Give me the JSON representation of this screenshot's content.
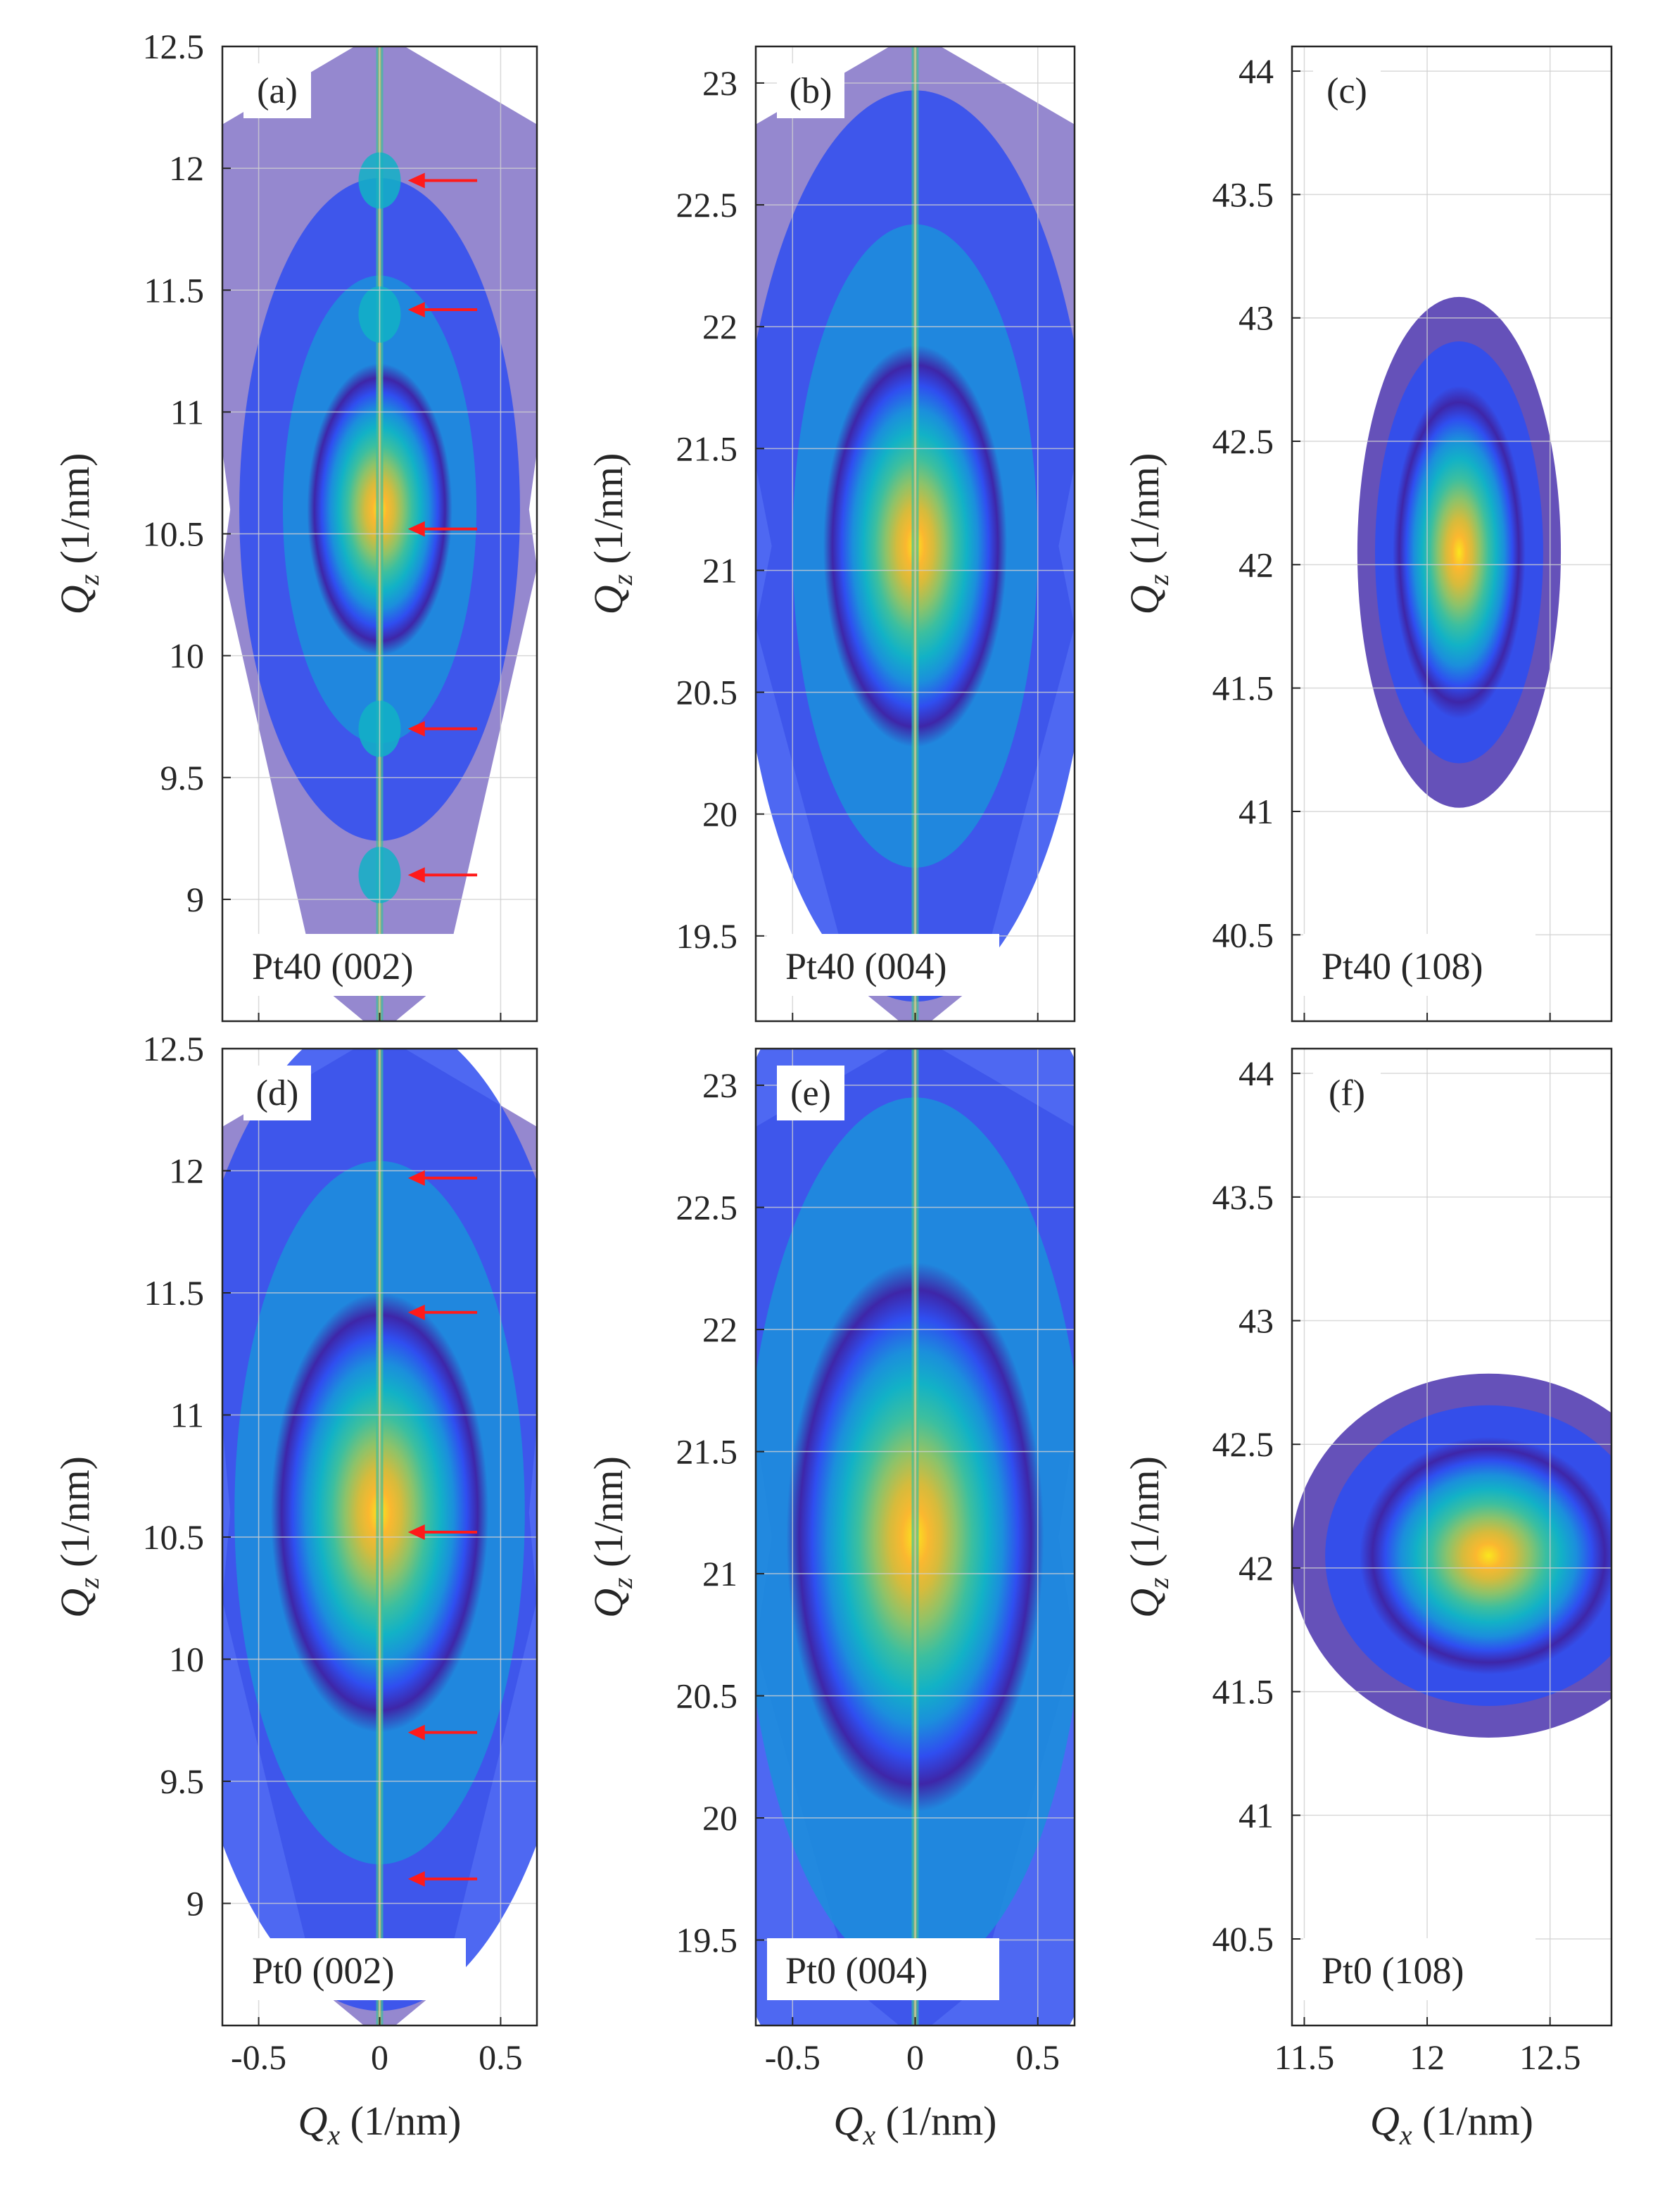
{
  "figure": {
    "x_axis_label_symbol": "Q",
    "x_axis_label_sub": "x",
    "x_axis_label_unit": " (1/nm)",
    "y_axis_label_symbol": "Q",
    "y_axis_label_sub": "z",
    "y_axis_label_unit": " (1/nm)"
  },
  "colors": {
    "colormap": [
      "#ffffff",
      "#3e26a8",
      "#2f4ef0",
      "#1b8fdc",
      "#12b2c6",
      "#3cbf9f",
      "#8cc36a",
      "#d6bb3c",
      "#fbb82f",
      "#fae61e"
    ],
    "arrow": "#ff1a1a",
    "grid": "#cfcfcf",
    "axes": "#262626"
  },
  "chart_data": [
    {
      "id": "a",
      "type": "heatmap",
      "panel_label": "(a)",
      "sample": "Pt40 (002)",
      "xlim": [
        -0.65,
        0.65
      ],
      "ylim": [
        8.5,
        12.5
      ],
      "xticks": [
        -0.5,
        0,
        0.5
      ],
      "xtick_labels": [
        "-0.5",
        "0",
        "0.5"
      ],
      "yticks": [
        9,
        9.5,
        10,
        10.5,
        11,
        11.5,
        12,
        12.5
      ],
      "ytick_labels": [
        "9",
        "9.5",
        "10",
        "10.5",
        "11",
        "11.5",
        "12",
        "12.5"
      ],
      "peak_center": [
        0,
        10.6
      ],
      "peak_width": [
        0.2,
        0.4
      ],
      "streak_x": 0,
      "satellites": [
        9.1,
        9.7,
        11.4,
        11.95
      ],
      "arrows_qz": [
        9.1,
        9.7,
        10.52,
        11.42,
        11.95
      ]
    },
    {
      "id": "b",
      "type": "heatmap",
      "panel_label": "(b)",
      "sample": "Pt40 (004)",
      "xlim": [
        -0.65,
        0.65
      ],
      "ylim": [
        19.15,
        23.15
      ],
      "xticks": [
        -0.5,
        0,
        0.5
      ],
      "xtick_labels": [
        "-0.5",
        "0",
        "0.5"
      ],
      "yticks": [
        19.5,
        20,
        20.5,
        21,
        21.5,
        22,
        22.5,
        23
      ],
      "ytick_labels": [
        "19.5",
        "20",
        "20.5",
        "21",
        "21.5",
        "22",
        "22.5",
        "23"
      ],
      "peak_center": [
        0,
        21.1
      ],
      "peak_width": [
        0.25,
        0.55
      ],
      "streak_x": 0,
      "satellites": [],
      "arrows_qz": []
    },
    {
      "id": "c",
      "type": "heatmap",
      "panel_label": "(c)",
      "sample": "Pt40 (108)",
      "xlim": [
        11.45,
        12.75
      ],
      "ylim": [
        40.15,
        44.1
      ],
      "xticks": [
        11.5,
        12,
        12.5
      ],
      "xtick_labels": [
        "11.5",
        "12",
        "12.5"
      ],
      "yticks": [
        40.5,
        41,
        41.5,
        42,
        42.5,
        43,
        43.5,
        44
      ],
      "ytick_labels": [
        "40.5",
        "41",
        "41.5",
        "42",
        "42.5",
        "43",
        "43.5",
        "44"
      ],
      "peak_center": [
        12.13,
        42.05
      ],
      "peak_width": [
        0.18,
        0.45
      ],
      "streak_x": null,
      "satellites": [],
      "arrows_qz": []
    },
    {
      "id": "d",
      "type": "heatmap",
      "panel_label": "(d)",
      "sample": "Pt0 (002)",
      "xlim": [
        -0.65,
        0.65
      ],
      "ylim": [
        8.5,
        12.5
      ],
      "xticks": [
        -0.5,
        0,
        0.5
      ],
      "xtick_labels": [
        "-0.5",
        "0",
        "0.5"
      ],
      "yticks": [
        9,
        9.5,
        10,
        10.5,
        11,
        11.5,
        12,
        12.5
      ],
      "ytick_labels": [
        "9",
        "9.5",
        "10",
        "10.5",
        "11",
        "11.5",
        "12",
        "12.5"
      ],
      "peak_center": [
        0,
        10.6
      ],
      "peak_width": [
        0.3,
        0.6
      ],
      "streak_x": 0,
      "satellites": [],
      "arrows_qz": [
        9.1,
        9.7,
        10.52,
        11.42,
        11.97
      ]
    },
    {
      "id": "e",
      "type": "heatmap",
      "panel_label": "(e)",
      "sample": "Pt0 (004)",
      "xlim": [
        -0.65,
        0.65
      ],
      "ylim": [
        19.15,
        23.15
      ],
      "xticks": [
        -0.5,
        0,
        0.5
      ],
      "xtick_labels": [
        "-0.5",
        "0",
        "0.5"
      ],
      "yticks": [
        19.5,
        20,
        20.5,
        21,
        21.5,
        22,
        22.5,
        23
      ],
      "ytick_labels": [
        "19.5",
        "20",
        "20.5",
        "21",
        "21.5",
        "22",
        "22.5",
        "23"
      ],
      "peak_center": [
        0,
        21.15
      ],
      "peak_width": [
        0.35,
        0.75
      ],
      "streak_x": 0,
      "satellites": [],
      "arrows_qz": []
    },
    {
      "id": "f",
      "type": "heatmap",
      "panel_label": "(f)",
      "sample": "Pt0 (108)",
      "xlim": [
        11.45,
        12.75
      ],
      "ylim": [
        40.15,
        44.1
      ],
      "xticks": [
        11.5,
        12,
        12.5
      ],
      "xtick_labels": [
        "11.5",
        "12",
        "12.5"
      ],
      "yticks": [
        40.5,
        41,
        41.5,
        42,
        42.5,
        43,
        43.5,
        44
      ],
      "ytick_labels": [
        "40.5",
        "41",
        "41.5",
        "42",
        "42.5",
        "43",
        "43.5",
        "44"
      ],
      "peak_center": [
        12.25,
        42.05
      ],
      "peak_width": [
        0.35,
        0.32
      ],
      "streak_x": null,
      "satellites": [],
      "arrows_qz": []
    }
  ]
}
